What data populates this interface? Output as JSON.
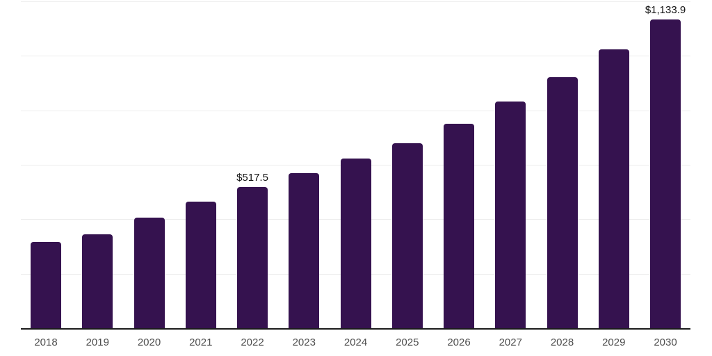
{
  "chart_data": {
    "type": "bar",
    "title": "",
    "xlabel": "",
    "ylabel": "",
    "categories": [
      "2018",
      "2019",
      "2020",
      "2021",
      "2022",
      "2023",
      "2024",
      "2025",
      "2026",
      "2027",
      "2028",
      "2029",
      "2030"
    ],
    "values": [
      317,
      344,
      407,
      465,
      517.5,
      570,
      623,
      679,
      750,
      832,
      921,
      1024,
      1133.9
    ],
    "point_labels": [
      "",
      "",
      "",
      "",
      "$517.5",
      "",
      "",
      "",
      "",
      "",
      "",
      "",
      "$1,133.9"
    ],
    "ylim": [
      0,
      1200
    ],
    "gridline_interval": 200,
    "grid": "horizontal-only",
    "legend": "none",
    "y_axis_tick_labels_visible": false,
    "bar_color": "#35124F",
    "gridline_color": "#ededed",
    "axis_line_color": "#1b1b1b",
    "x_tick_label_color": "#4d4d4d",
    "data_label_color": "#111111"
  }
}
